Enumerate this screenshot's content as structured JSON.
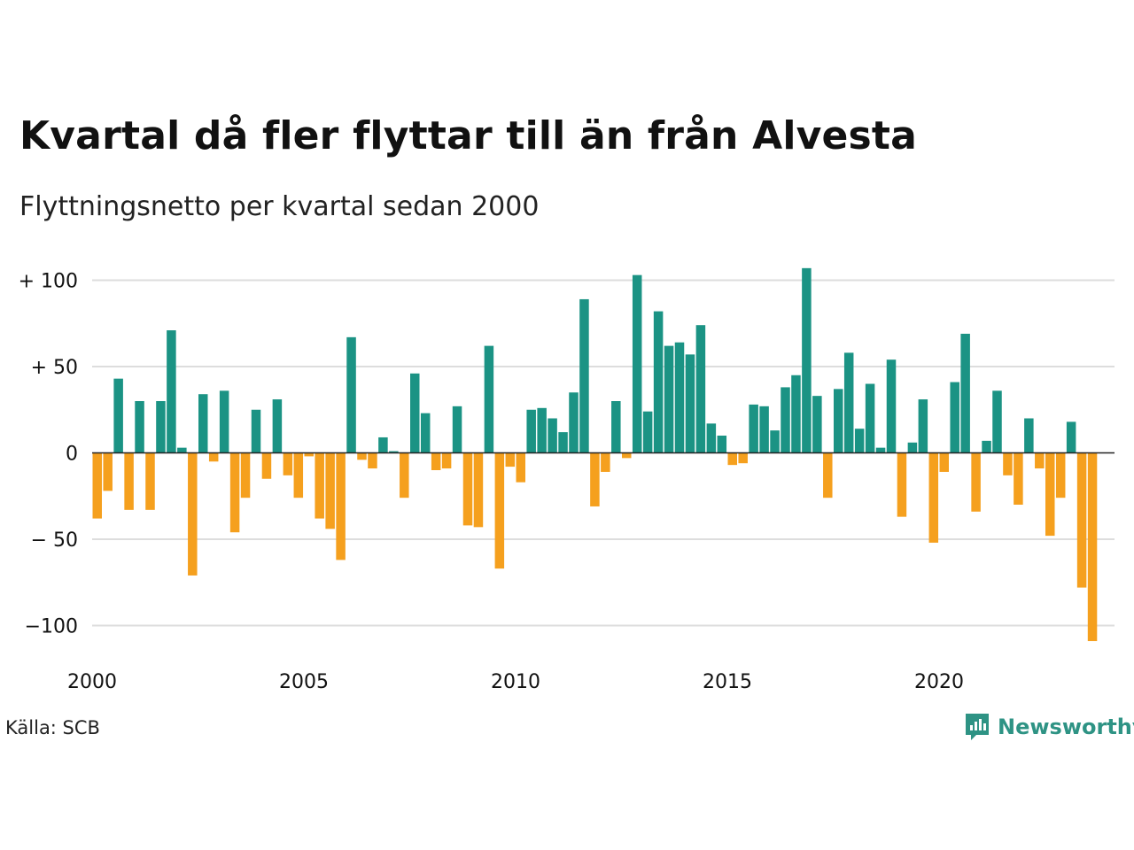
{
  "title": "Kvartal då fler flyttar till än från Alvesta",
  "subtitle": "Flyttningsnetto per kvartal sedan 2000",
  "source": "Källa: SCB",
  "brand": {
    "name": "Newsworthy",
    "color": "#2e9384",
    "icon": "newsworthy-logo-icon"
  },
  "chart_data": {
    "type": "bar",
    "x_start": "2000 Q1",
    "x_ticks": [
      "2000",
      "2005",
      "2010",
      "2015",
      "2020"
    ],
    "x_tick_years": [
      2000,
      2005,
      2010,
      2015,
      2020
    ],
    "y_ticks": [
      {
        "value": 100,
        "label": "+ 100"
      },
      {
        "value": 50,
        "label": "+  50"
      },
      {
        "value": 0,
        "label": "0"
      },
      {
        "value": -50,
        "label": "− 50"
      },
      {
        "value": -100,
        "label": "−100"
      }
    ],
    "ylim": [
      -110,
      110
    ],
    "grid": true,
    "colors": {
      "positive": "#1b9384",
      "negative": "#f5a01e",
      "grid": "#dddddd",
      "zero": "#222222"
    },
    "values": [
      -38,
      -22,
      43,
      -33,
      30,
      -33,
      30,
      71,
      3,
      -71,
      34,
      -5,
      36,
      -46,
      -26,
      25,
      -15,
      31,
      -13,
      -26,
      -2,
      -38,
      -44,
      -62,
      67,
      -4,
      -9,
      9,
      1,
      -26,
      46,
      23,
      -10,
      -9,
      27,
      -42,
      -43,
      62,
      -67,
      -8,
      -17,
      25,
      26,
      20,
      12,
      35,
      89,
      -31,
      -11,
      30,
      -3,
      103,
      24,
      82,
      62,
      64,
      57,
      74,
      17,
      10,
      -7,
      -6,
      28,
      27,
      13,
      38,
      45,
      107,
      33,
      -26,
      37,
      58,
      14,
      40,
      3,
      54,
      -37,
      6,
      31,
      -52,
      -11,
      41,
      69,
      -34,
      7,
      36,
      -13,
      -30,
      20,
      -9,
      -48,
      -26,
      18,
      -78,
      -109
    ]
  }
}
